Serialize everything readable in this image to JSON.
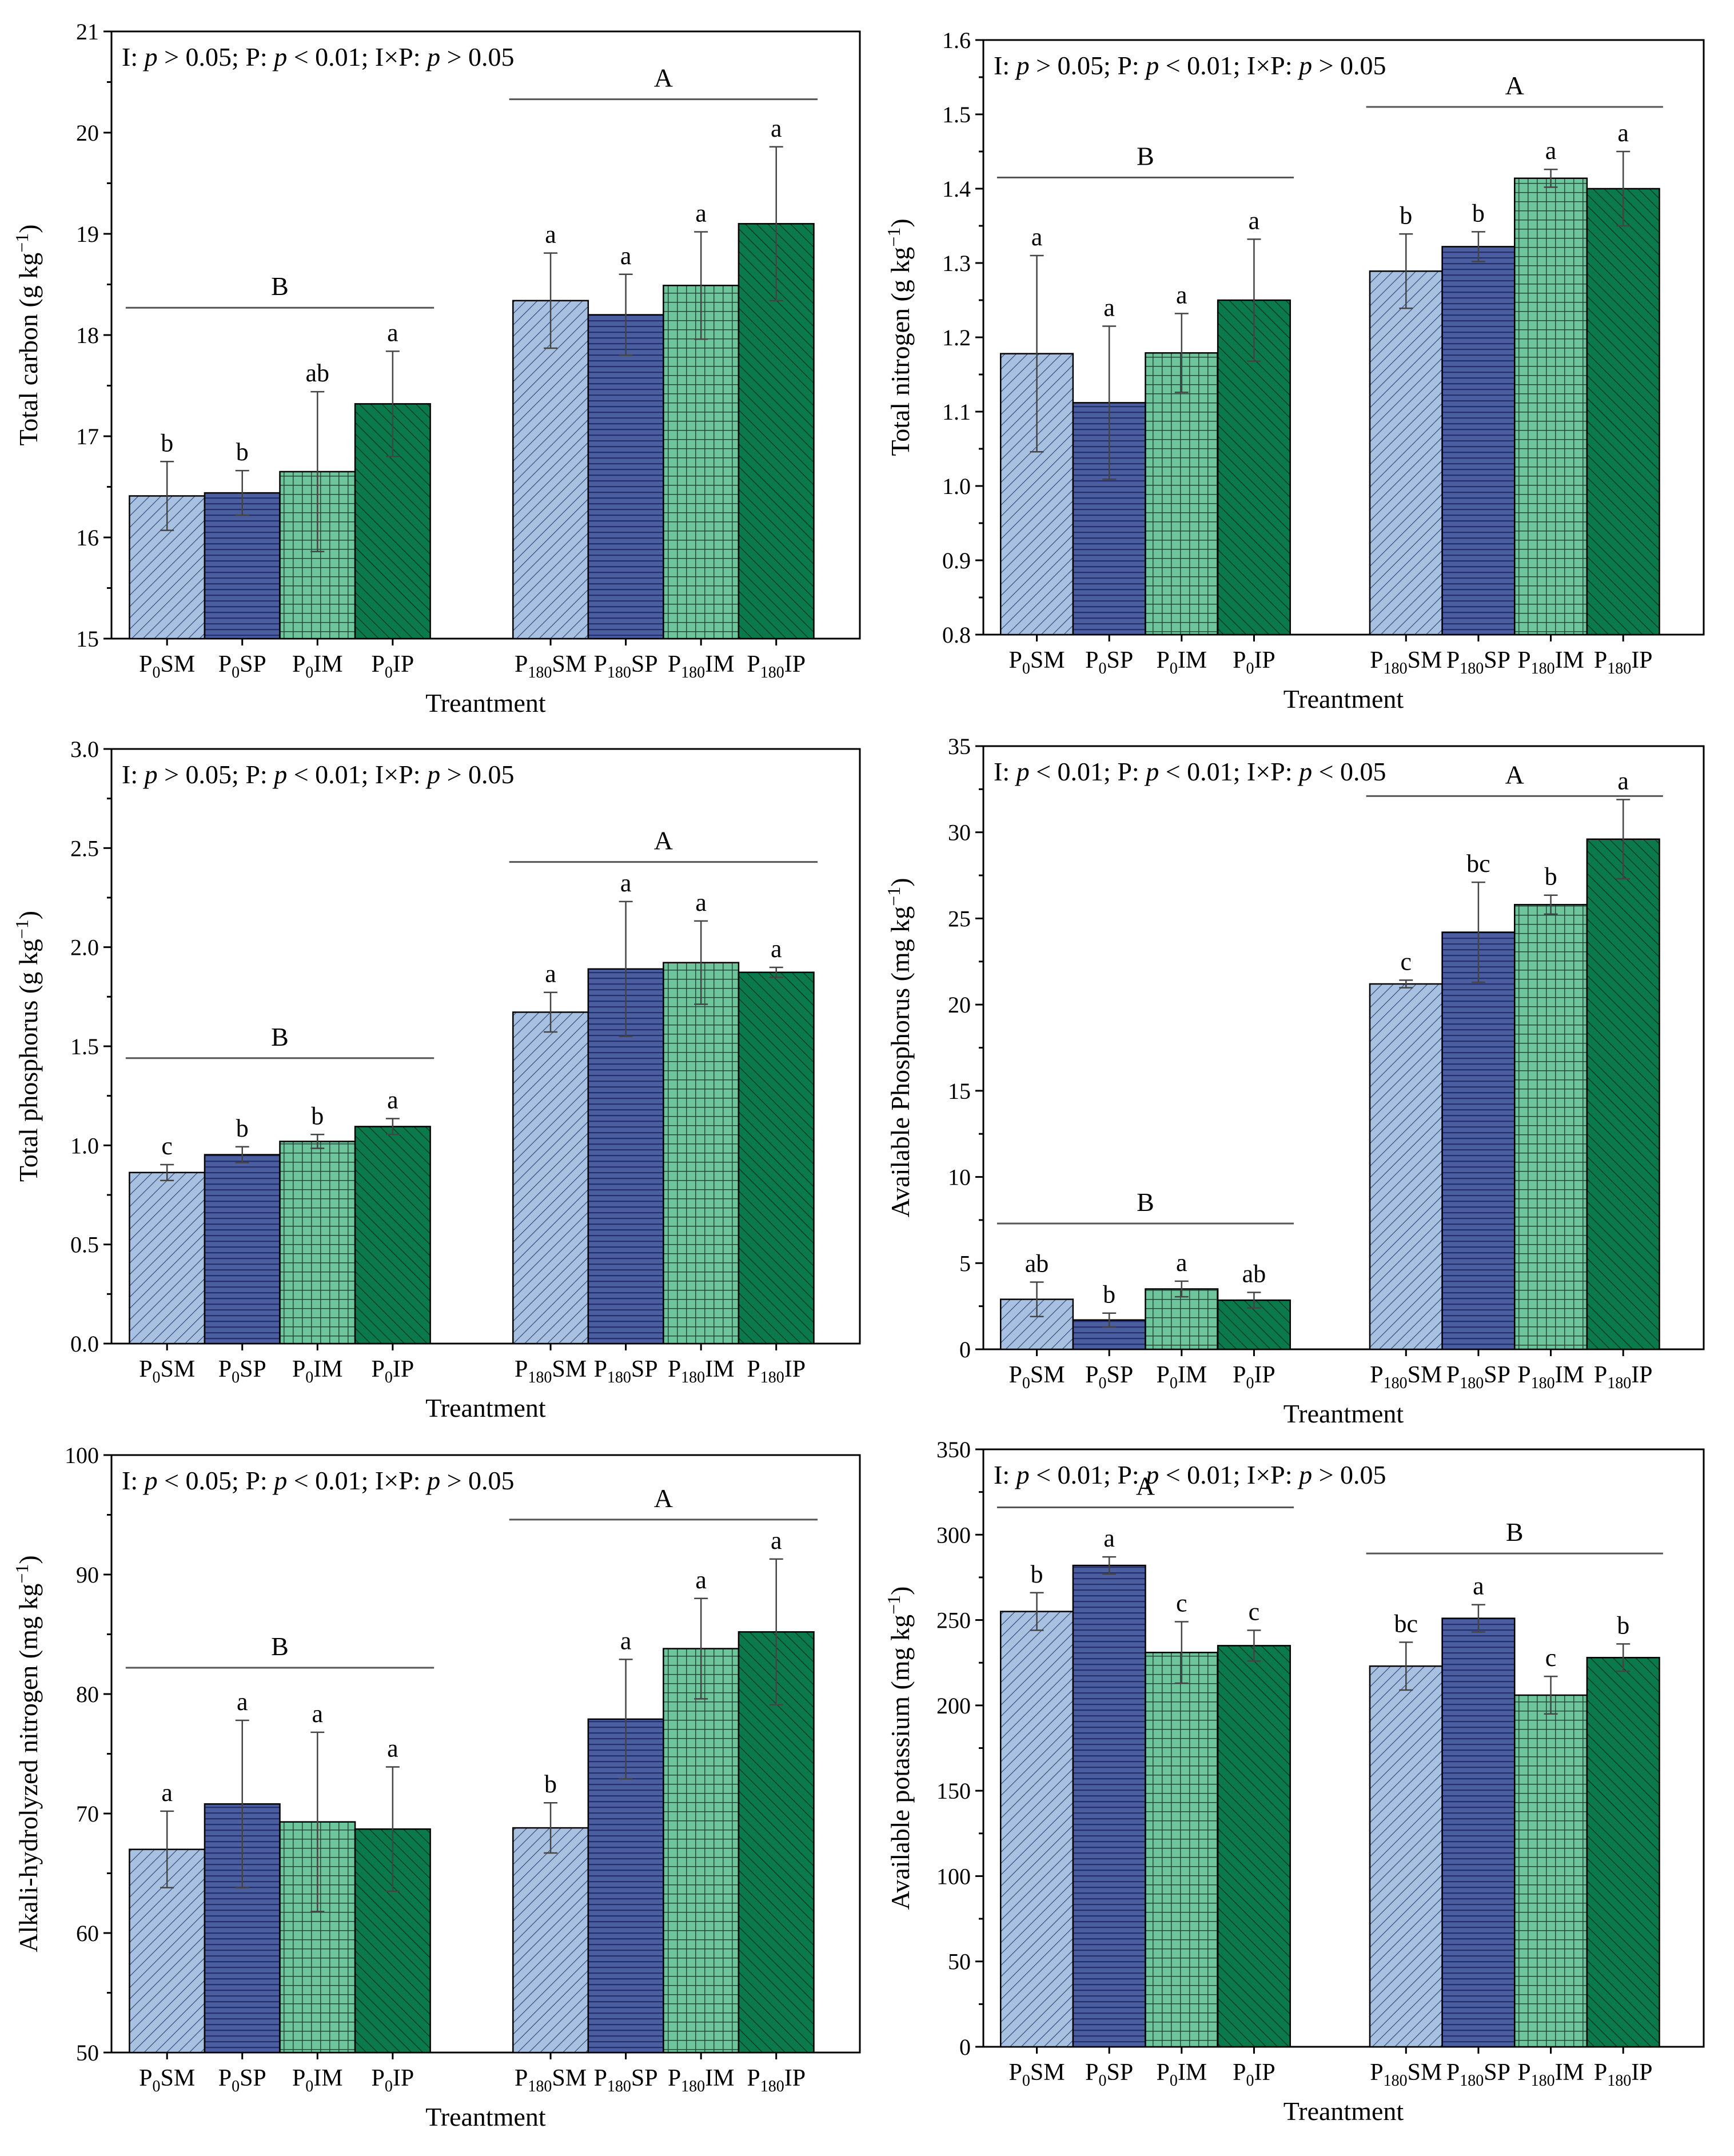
{
  "colors": {
    "SM": "#a9c1e0",
    "SP": "#4a5ea0",
    "IM": "#6cc59b",
    "IP": "#0a7a4c",
    "SM_pattern": "#3a4e80",
    "SP_pattern": "#23306b",
    "IM_pattern": "#1e4d39",
    "IP_pattern": "#07301f"
  },
  "chart_data": [
    {
      "type": "bar",
      "ylabel": "Total carbon (g kg⁻¹)",
      "xlabel": "Treantment",
      "ylim": [
        15,
        21
      ],
      "yticks": [
        15,
        16,
        17,
        18,
        19,
        20,
        21
      ],
      "stat_text": "I: p > 0.05; P: p < 0.01; I×P: p > 0.05",
      "categories": [
        "P0SM",
        "P0SP",
        "P0IM",
        "P0IP",
        "P180SM",
        "P180SP",
        "P180IM",
        "P180IP"
      ],
      "values": [
        16.41,
        16.44,
        16.65,
        17.32,
        18.34,
        18.2,
        18.49,
        19.1
      ],
      "errors": [
        0.34,
        0.22,
        0.79,
        0.52,
        0.47,
        0.4,
        0.53,
        0.76
      ],
      "letters": [
        "b",
        "b",
        "ab",
        "a",
        "a",
        "a",
        "a",
        "a"
      ],
      "groups": [
        {
          "letter": "B",
          "y": 18.27
        },
        {
          "letter": "A",
          "y": 20.33
        }
      ]
    },
    {
      "type": "bar",
      "ylabel": "Total nitrogen (g kg⁻¹)",
      "xlabel": "Treantment",
      "ylim": [
        0.8,
        1.6
      ],
      "yticks": [
        0.8,
        0.9,
        1.0,
        1.1,
        1.2,
        1.3,
        1.4,
        1.5,
        1.6
      ],
      "stat_text": "I: p > 0.05; P: p < 0.01; I×P: p > 0.05",
      "categories": [
        "P0SM",
        "P0SP",
        "P0IM",
        "P0IP",
        "P180SM",
        "P180SP",
        "P180IM",
        "P180IP"
      ],
      "values": [
        1.178,
        1.112,
        1.179,
        1.25,
        1.289,
        1.322,
        1.414,
        1.4
      ],
      "errors": [
        0.132,
        0.103,
        0.053,
        0.082,
        0.05,
        0.02,
        0.012,
        0.05
      ],
      "letters": [
        "a",
        "a",
        "a",
        "a",
        "b",
        "b",
        "a",
        "a"
      ],
      "groups": [
        {
          "letter": "B",
          "y": 1.415
        },
        {
          "letter": "A",
          "y": 1.51
        }
      ]
    },
    {
      "type": "bar",
      "ylabel": "Total phosphorus (g kg⁻¹)",
      "xlabel": "Treantment",
      "ylim": [
        0,
        3
      ],
      "yticks": [
        0.0,
        0.5,
        1.0,
        1.5,
        2.0,
        2.5,
        3.0
      ],
      "stat_text": "I: p > 0.05; P: p < 0.01; I×P: p > 0.05",
      "categories": [
        "P0SM",
        "P0SP",
        "P0IM",
        "P0IP",
        "P180SM",
        "P180SP",
        "P180IM",
        "P180IP"
      ],
      "values": [
        0.863,
        0.953,
        1.02,
        1.095,
        1.672,
        1.89,
        1.922,
        1.873
      ],
      "errors": [
        0.04,
        0.04,
        0.035,
        0.04,
        0.1,
        0.34,
        0.21,
        0.025
      ],
      "letters": [
        "c",
        "b",
        "b",
        "a",
        "a",
        "a",
        "a",
        "a"
      ],
      "groups": [
        {
          "letter": "B",
          "y": 1.44
        },
        {
          "letter": "A",
          "y": 2.43
        }
      ]
    },
    {
      "type": "bar",
      "ylabel": "Available Phosphorus (mg kg⁻¹)",
      "xlabel": "Treantment",
      "ylim": [
        0,
        35
      ],
      "yticks": [
        0,
        5,
        10,
        15,
        20,
        25,
        30,
        35
      ],
      "stat_text": "I: p < 0.01; P: p < 0.01; I×P: p < 0.05",
      "categories": [
        "P0SM",
        "P0SP",
        "P0IM",
        "P0IP",
        "P180SM",
        "P180SP",
        "P180IM",
        "P180IP"
      ],
      "values": [
        2.9,
        1.7,
        3.5,
        2.85,
        21.2,
        24.2,
        25.8,
        29.6
      ],
      "errors": [
        1.0,
        0.4,
        0.45,
        0.45,
        0.22,
        2.9,
        0.55,
        2.3
      ],
      "letters": [
        "ab",
        "b",
        "a",
        "ab",
        "c",
        "bc",
        "b",
        "a"
      ],
      "groups": [
        {
          "letter": "B",
          "y": 7.3
        },
        {
          "letter": "A",
          "y": 32.1
        }
      ]
    },
    {
      "type": "bar",
      "ylabel": "Alkali-hydrolyzed nitrogen (mg kg⁻¹)",
      "xlabel": "Treantment",
      "ylim": [
        50,
        100
      ],
      "yticks": [
        50,
        60,
        70,
        80,
        90,
        100
      ],
      "stat_text": "I: p < 0.05; P: p < 0.01; I×P: p > 0.05",
      "categories": [
        "P0SM",
        "P0SP",
        "P0IM",
        "P0IP",
        "P180SM",
        "P180SP",
        "P180IM",
        "P180IP"
      ],
      "values": [
        67.0,
        70.8,
        69.3,
        68.7,
        68.8,
        77.9,
        83.8,
        85.2
      ],
      "errors": [
        3.2,
        7.0,
        7.5,
        5.2,
        2.1,
        5.0,
        4.2,
        6.1
      ],
      "letters": [
        "a",
        "a",
        "a",
        "a",
        "b",
        "a",
        "a",
        "a"
      ],
      "groups": [
        {
          "letter": "B",
          "y": 82.2
        },
        {
          "letter": "A",
          "y": 94.6
        }
      ]
    },
    {
      "type": "bar",
      "ylabel": "Available potassium (mg kg⁻¹)",
      "xlabel": "Treantment",
      "ylim": [
        0,
        350
      ],
      "yticks": [
        0,
        50,
        100,
        150,
        200,
        250,
        300,
        350
      ],
      "stat_text": "I: p < 0.01; P: p < 0.01; I×P: p > 0.05",
      "categories": [
        "P0SM",
        "P0SP",
        "P0IM",
        "P0IP",
        "P180SM",
        "P180SP",
        "P180IM",
        "P180IP"
      ],
      "values": [
        255,
        282,
        231,
        235,
        223,
        251,
        206,
        228
      ],
      "errors": [
        11,
        5,
        18,
        9,
        14,
        8,
        11,
        8
      ],
      "letters": [
        "b",
        "a",
        "c",
        "c",
        "bc",
        "a",
        "c",
        "b"
      ],
      "groups": [
        {
          "letter": "A",
          "y": 316
        },
        {
          "letter": "B",
          "y": 289
        }
      ]
    }
  ]
}
